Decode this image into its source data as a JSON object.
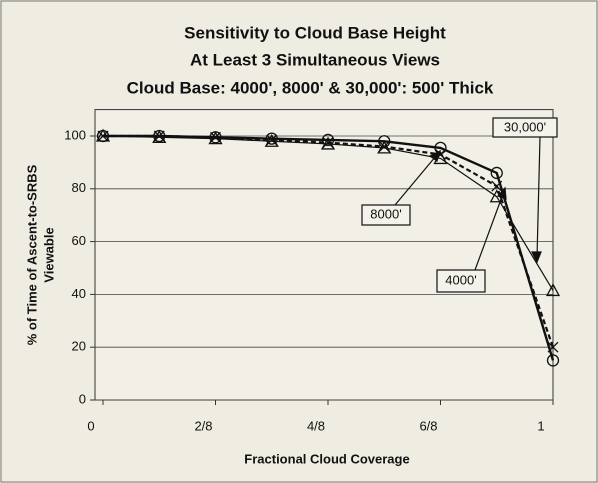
{
  "chart_data": {
    "type": "line",
    "title": [
      "Sensitivity to Cloud Base Height",
      "At Least 3 Simultaneous Views",
      "Cloud Base: 4000', 8000' & 30,000': 500' Thick"
    ],
    "x_label": "Fractional Cloud Coverage",
    "y_label": [
      "% of Time of Ascent-to-SRBS",
      "Viewable"
    ],
    "x": [
      0,
      0.125,
      0.25,
      0.375,
      0.5,
      0.625,
      0.75,
      0.875,
      1
    ],
    "series": [
      {
        "name": "4000'",
        "color": "#111111",
        "marker": "circle",
        "line": "solid",
        "values": [
          100,
          100,
          99.5,
          99,
          98.5,
          98,
          95.5,
          86,
          15
        ]
      },
      {
        "name": "8000'",
        "color": "#111111",
        "marker": "x",
        "line": "dashed",
        "values": [
          100,
          100,
          99.5,
          98.5,
          97.5,
          96,
          93,
          81,
          20
        ]
      },
      {
        "name": "30,000'",
        "color": "#111111",
        "marker": "triangle",
        "line": "thin",
        "values": [
          100,
          99.5,
          99,
          98,
          97,
          95.5,
          91.5,
          77,
          41.5
        ]
      }
    ],
    "xlim": [
      0,
      1
    ],
    "xticks": [
      0,
      {
        "value": 0.25,
        "label": "2/8"
      },
      {
        "value": 0.5,
        "label": "4/8"
      },
      {
        "value": 0.75,
        "label": "6/8"
      },
      1
    ],
    "ylim": [
      0,
      110
    ],
    "yticks": [
      0,
      20,
      40,
      60,
      80,
      100
    ],
    "grid": true
  }
}
